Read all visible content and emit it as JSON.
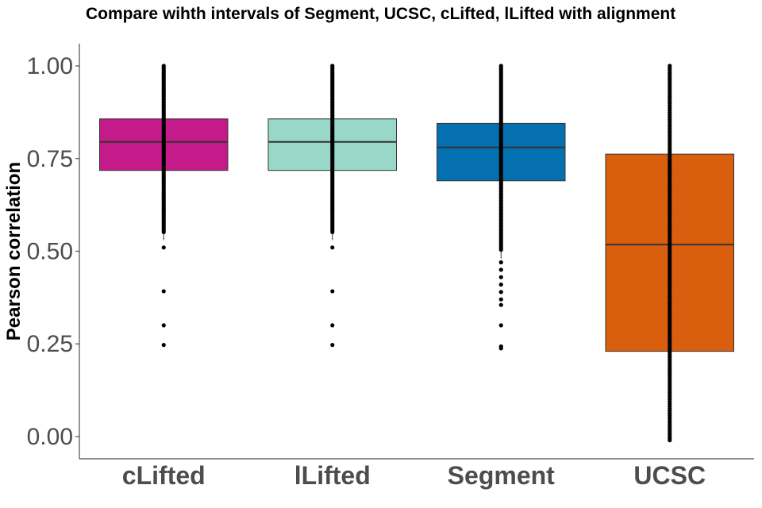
{
  "chart_data": {
    "type": "box",
    "title": "Compare wihth intervals of Segment, UCSC, cLifted, lLifted with alignment",
    "xlabel": "",
    "ylabel": "Pearson correlation",
    "ylim": [
      -0.06,
      1.06
    ],
    "yticks": [
      "0.00",
      "0.25",
      "0.50",
      "0.75",
      "1.00"
    ],
    "ytick_values": [
      0,
      0.25,
      0.5,
      0.75,
      1.0
    ],
    "grid": false,
    "legend": "none",
    "categories": [
      "cLifted",
      "lLifted",
      "Segment",
      "UCSC"
    ],
    "boxes": [
      {
        "category": "cLifted",
        "color": "#c51b8a",
        "whisker_low": 0.53,
        "q1": 0.718,
        "median": 0.795,
        "q3": 0.857,
        "whisker_high": 1.0,
        "outliers": [
          0.51,
          0.392,
          0.3,
          0.247
        ]
      },
      {
        "category": "lLifted",
        "color": "#99d8c9",
        "whisker_low": 0.53,
        "q1": 0.718,
        "median": 0.795,
        "q3": 0.857,
        "whisker_high": 1.0,
        "outliers": [
          0.51,
          0.392,
          0.3,
          0.247
        ]
      },
      {
        "category": "Segment",
        "color": "#0570b0",
        "whisker_low": 0.48,
        "q1": 0.69,
        "median": 0.78,
        "q3": 0.845,
        "whisker_high": 1.0,
        "outliers": [
          0.47,
          0.45,
          0.43,
          0.41,
          0.39,
          0.37,
          0.355,
          0.3,
          0.243,
          0.238
        ]
      },
      {
        "category": "UCSC",
        "color": "#d95f0e",
        "whisker_low": 0.0,
        "q1": 0.23,
        "median": 0.518,
        "q3": 0.762,
        "whisker_high": 1.0,
        "outliers": [
          -0.005,
          -0.01
        ]
      }
    ]
  }
}
